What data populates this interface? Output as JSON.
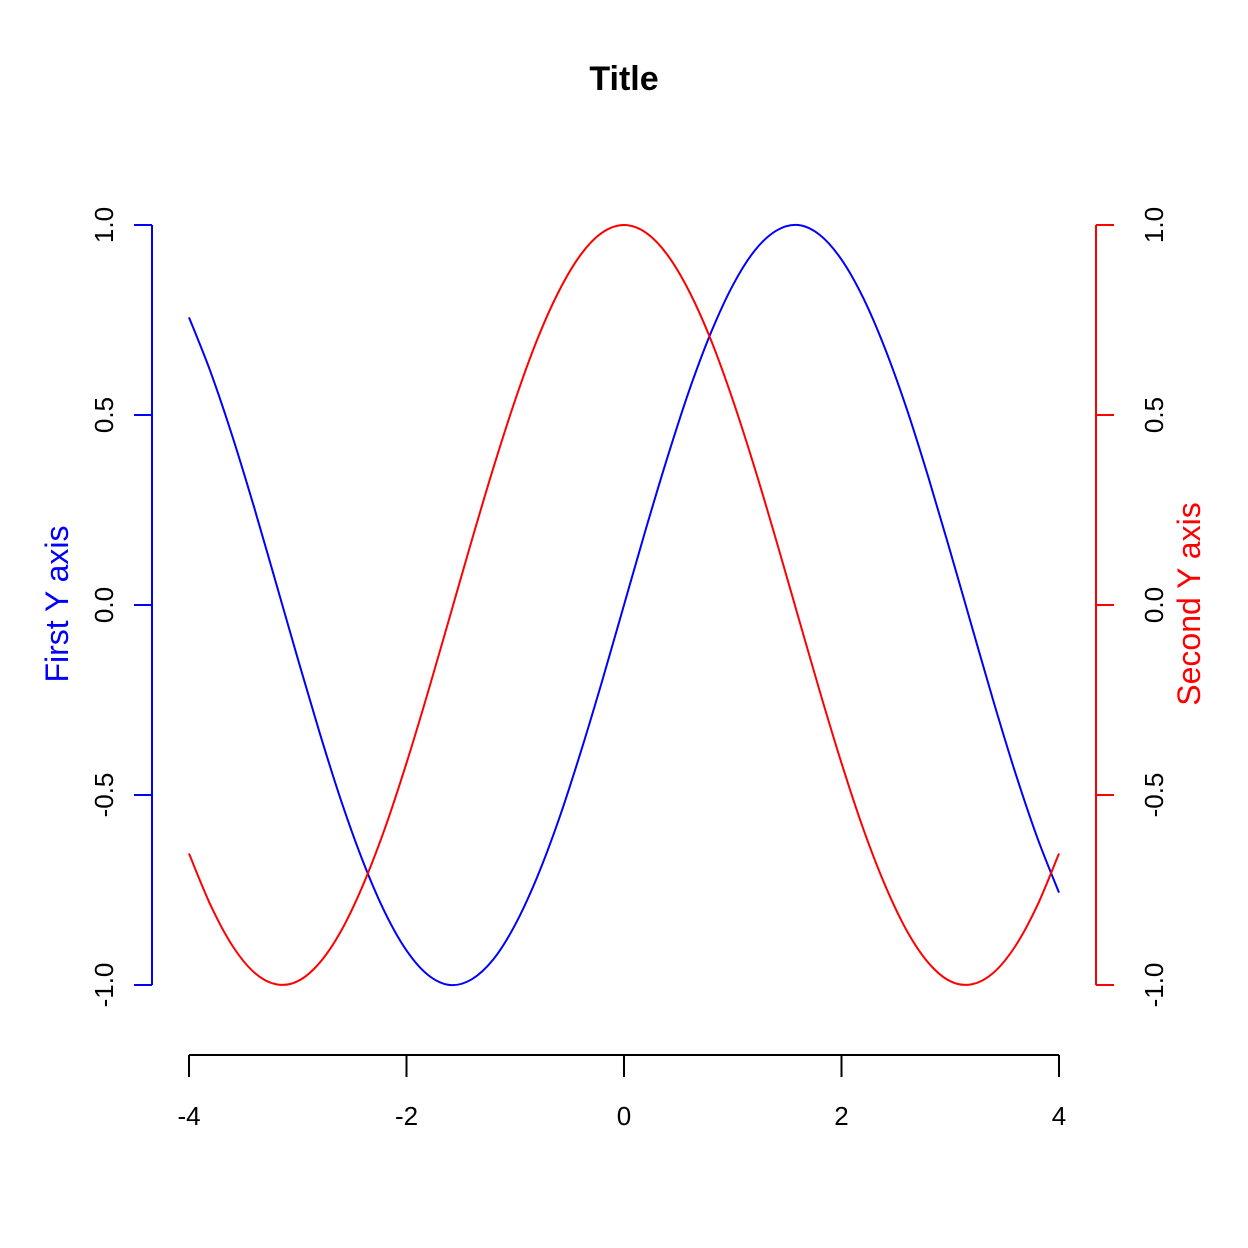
{
  "chart_data": {
    "type": "line",
    "title": "Title",
    "x": [
      -4.0,
      -3.8,
      -3.6,
      -3.4,
      -3.2,
      -3.0,
      -2.8,
      -2.6,
      -2.4,
      -2.2,
      -2.0,
      -1.8,
      -1.6,
      -1.4,
      -1.2,
      -1.0,
      -0.8,
      -0.6,
      -0.4,
      -0.2,
      0.0,
      0.2,
      0.4,
      0.6,
      0.8,
      1.0,
      1.2,
      1.4,
      1.6,
      1.8,
      2.0,
      2.2,
      2.4,
      2.6,
      2.8,
      3.0,
      3.2,
      3.4,
      3.6,
      3.8,
      4.0
    ],
    "xlim": [
      -4,
      4
    ],
    "x_ticks": [
      "-4",
      "-2",
      "0",
      "2",
      "4"
    ],
    "x_tick_values": [
      -4,
      -2,
      0,
      2,
      4
    ],
    "y_left": {
      "label": "First Y axis",
      "color": "#0000ff",
      "ylim": [
        -1,
        1
      ],
      "ticks": [
        "-1.0",
        "-0.5",
        "0.0",
        "0.5",
        "1.0"
      ],
      "tick_values": [
        -1,
        -0.5,
        0,
        0.5,
        1
      ]
    },
    "y_right": {
      "label": "Second Y axis",
      "color": "#ff0000",
      "ylim": [
        -1,
        1
      ],
      "ticks": [
        "-1.0",
        "-0.5",
        "0.0",
        "0.5",
        "1.0"
      ],
      "tick_values": [
        -1,
        -0.5,
        0,
        0.5,
        1
      ]
    },
    "series": [
      {
        "color": "#0000ff",
        "axis": "left",
        "values": [
          0.757,
          0.612,
          0.443,
          0.256,
          0.058,
          -0.141,
          -0.335,
          -0.516,
          -0.675,
          -0.808,
          -0.909,
          -0.974,
          -1.0,
          -0.985,
          -0.932,
          -0.841,
          -0.717,
          -0.565,
          -0.389,
          -0.199,
          0.0,
          0.199,
          0.389,
          0.565,
          0.717,
          0.841,
          0.932,
          0.985,
          1.0,
          0.974,
          0.909,
          0.808,
          0.675,
          0.516,
          0.335,
          0.141,
          -0.058,
          -0.256,
          -0.443,
          -0.612,
          -0.757
        ]
      },
      {
        "color": "#ff0000",
        "axis": "right",
        "values": [
          -0.654,
          -0.791,
          -0.897,
          -0.967,
          -0.998,
          -0.99,
          -0.942,
          -0.857,
          -0.737,
          -0.589,
          -0.416,
          -0.227,
          -0.029,
          0.17,
          0.362,
          0.54,
          0.697,
          0.825,
          0.921,
          0.98,
          1.0,
          0.98,
          0.921,
          0.825,
          0.697,
          0.54,
          0.362,
          0.17,
          -0.029,
          -0.227,
          -0.416,
          -0.589,
          -0.737,
          -0.857,
          -0.942,
          -0.99,
          -0.998,
          -0.967,
          -0.897,
          -0.791,
          -0.654
        ]
      }
    ],
    "grid": false,
    "legend": "none"
  }
}
